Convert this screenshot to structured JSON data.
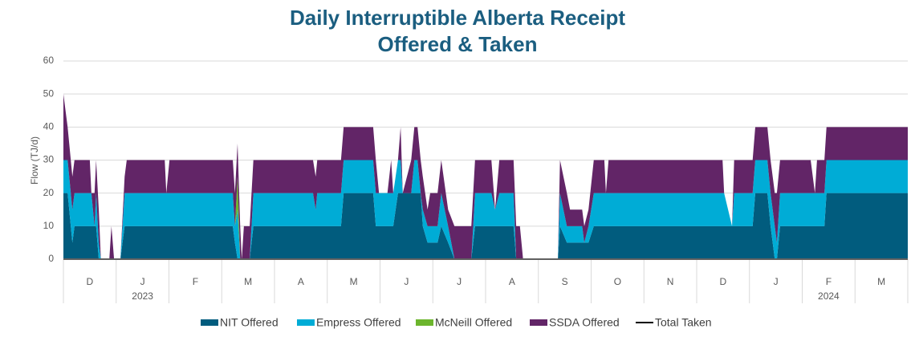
{
  "chart_data": {
    "type": "stacked_area",
    "title": [
      "Daily Interruptible Alberta Receipt",
      "Offered & Taken"
    ],
    "y_label": "Flow (TJ/d)",
    "categories": [
      "D",
      "J",
      "F",
      "M",
      "A",
      "M",
      "J",
      "J",
      "A",
      "S",
      "O",
      "N",
      "D",
      "J",
      "F",
      "M"
    ],
    "year_labels": [
      "2023",
      "2024"
    ],
    "xlim": [
      0,
      16
    ],
    "xticks": [
      0,
      1,
      2,
      3,
      4,
      5,
      6,
      7,
      8,
      9,
      10,
      11,
      12,
      13,
      14,
      15,
      16
    ],
    "ylim": [
      0,
      60
    ],
    "yticks": [
      0,
      10,
      20,
      30,
      40,
      50,
      60
    ],
    "grid": true,
    "legend": "bottom",
    "x": [
      0,
      0.08,
      0.17,
      0.21,
      0.5,
      0.53,
      0.59,
      0.62,
      0.67,
      0.71,
      0.87,
      0.91,
      0.96,
      1.08,
      1.16,
      1.2,
      1.92,
      1.95,
      2.01,
      3.21,
      3.25,
      3.3,
      3.35,
      3.38,
      3.42,
      3.53,
      3.6,
      4.73,
      4.78,
      4.81,
      5.26,
      5.31,
      5.87,
      5.92,
      5.98,
      6.07,
      6.14,
      6.21,
      6.25,
      6.34,
      6.39,
      6.43,
      6.59,
      6.65,
      6.71,
      6.77,
      6.81,
      6.9,
      6.95,
      7.09,
      7.16,
      7.29,
      7.41,
      7.73,
      7.8,
      8.11,
      8.18,
      8.26,
      8.53,
      8.58,
      8.65,
      8.71,
      9.37,
      9.41,
      9.54,
      9.6,
      9.83,
      9.87,
      9.95,
      10.05,
      10.25,
      10.28,
      10.33,
      12.49,
      12.52,
      12.67,
      12.71,
      13.06,
      13.11,
      13.34,
      13.4,
      13.48,
      13.52,
      13.58,
      14.16,
      14.24,
      14.28,
      14.42,
      14.46,
      16
    ],
    "series": [
      {
        "name": "NIT Offered",
        "color": "#015c7e",
        "values": [
          20,
          20,
          5,
          10,
          10,
          10,
          10,
          10,
          0,
          0,
          0,
          0,
          0,
          0,
          10,
          10,
          10,
          10,
          10,
          10,
          5,
          0,
          0,
          0,
          0,
          0,
          10,
          10,
          10,
          10,
          10,
          20,
          20,
          10,
          10,
          10,
          10,
          10,
          10,
          20,
          20,
          20,
          20,
          20,
          20,
          20,
          10,
          5,
          5,
          5,
          10,
          5,
          0,
          0,
          10,
          10,
          10,
          10,
          10,
          0,
          0,
          0,
          0,
          10,
          5,
          5,
          5,
          5,
          5,
          10,
          10,
          10,
          10,
          10,
          10,
          10,
          10,
          10,
          20,
          20,
          10,
          0,
          0,
          10,
          10,
          10,
          10,
          10,
          20,
          20
        ]
      },
      {
        "name": "Empress Offered",
        "color": "#00acd6",
        "values": [
          10,
          10,
          10,
          10,
          10,
          10,
          0,
          10,
          5,
          0,
          0,
          0,
          0,
          0,
          10,
          10,
          10,
          10,
          10,
          10,
          5,
          15,
          0,
          0,
          0,
          0,
          10,
          10,
          5,
          10,
          10,
          10,
          10,
          10,
          10,
          10,
          10,
          10,
          10,
          10,
          10,
          0,
          0,
          10,
          10,
          0,
          5,
          5,
          5,
          5,
          10,
          5,
          0,
          0,
          10,
          10,
          5,
          10,
          10,
          0,
          0,
          0,
          0,
          10,
          5,
          5,
          5,
          0,
          5,
          10,
          10,
          10,
          10,
          10,
          10,
          0,
          10,
          10,
          10,
          10,
          10,
          10,
          5,
          10,
          10,
          10,
          10,
          10,
          10,
          10
        ]
      },
      {
        "name": "McNeill Offered",
        "color": "#6cb52d",
        "values": [
          0,
          0,
          0,
          0,
          0,
          0,
          0,
          0,
          0,
          0,
          0,
          0,
          0,
          0,
          0,
          0,
          0,
          0,
          0,
          0,
          0,
          10,
          0,
          0,
          0,
          0,
          0,
          0,
          0,
          0,
          0,
          0,
          0,
          0,
          0,
          0,
          0,
          0,
          0,
          0,
          0,
          0,
          0,
          0,
          0,
          0,
          0,
          0,
          0,
          0,
          0,
          0,
          0,
          0,
          0,
          0,
          0,
          0,
          0,
          0,
          0,
          0,
          0,
          0,
          0,
          0,
          0,
          0,
          0,
          0,
          0,
          0,
          0,
          0,
          0,
          0,
          0,
          0,
          0,
          0,
          0,
          0,
          0,
          0,
          0,
          0,
          0,
          0,
          0,
          0
        ]
      },
      {
        "name": "SSDA Offered",
        "color": "#622567",
        "values": [
          20,
          10,
          10,
          10,
          10,
          0,
          10,
          10,
          10,
          0,
          0,
          10,
          0,
          0,
          5,
          10,
          10,
          0,
          10,
          10,
          10,
          10,
          10,
          0,
          10,
          10,
          10,
          10,
          10,
          10,
          10,
          10,
          10,
          10,
          0,
          0,
          0,
          10,
          0,
          0,
          10,
          0,
          10,
          10,
          10,
          10,
          10,
          5,
          10,
          10,
          10,
          5,
          10,
          10,
          10,
          10,
          0,
          10,
          10,
          10,
          10,
          0,
          0,
          10,
          10,
          5,
          5,
          5,
          5,
          10,
          10,
          0,
          10,
          10,
          0,
          0,
          10,
          10,
          10,
          10,
          10,
          10,
          15,
          10,
          10,
          0,
          10,
          10,
          10,
          10
        ]
      },
      {
        "name": "Total Taken",
        "color": "#000000",
        "line": true,
        "values": [
          0,
          0,
          0,
          0,
          0,
          0,
          0,
          0,
          0,
          0,
          0,
          0,
          0,
          0,
          0,
          0,
          0,
          0,
          0,
          0,
          0,
          0,
          0,
          0,
          0,
          0,
          0,
          0,
          0,
          0,
          0,
          0,
          0,
          0,
          0,
          0,
          0,
          0,
          0,
          0,
          0,
          0,
          0,
          0,
          0,
          0,
          0,
          0,
          0,
          0,
          0,
          0,
          0,
          0,
          0,
          0,
          0,
          0,
          0,
          0,
          0,
          0,
          0,
          0,
          0,
          0,
          0,
          0,
          0,
          0,
          0,
          0,
          0,
          0,
          0,
          0,
          0,
          0,
          0,
          0,
          0,
          0,
          0,
          0,
          0,
          0,
          0,
          0,
          0,
          0
        ]
      }
    ]
  }
}
